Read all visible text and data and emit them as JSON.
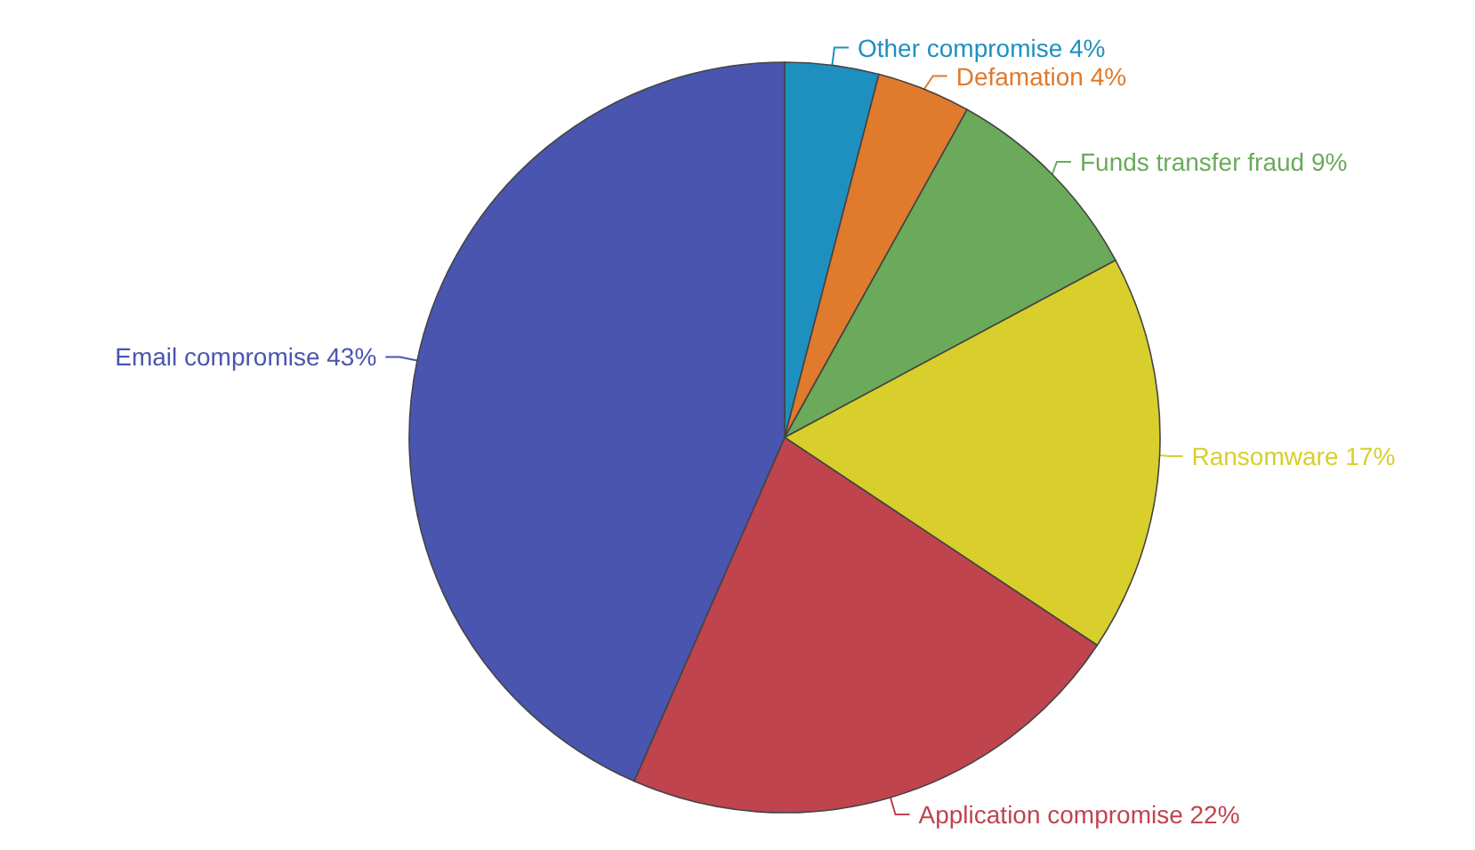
{
  "chart_data": {
    "type": "pie",
    "categories": [
      "Other compromise",
      "Defamation",
      "Funds transfer fraud",
      "Ransomware",
      "Application compromise",
      "Email compromise"
    ],
    "values": [
      4,
      4,
      9,
      17,
      22,
      43
    ],
    "value_labels": [
      "4%",
      "4%",
      "9%",
      "17%",
      "22%",
      "43%"
    ],
    "colors": [
      "#1e90c0",
      "#e07a2c",
      "#6aaa5a",
      "#d8cf2c",
      "#bf444e",
      "#4a55b0"
    ]
  }
}
